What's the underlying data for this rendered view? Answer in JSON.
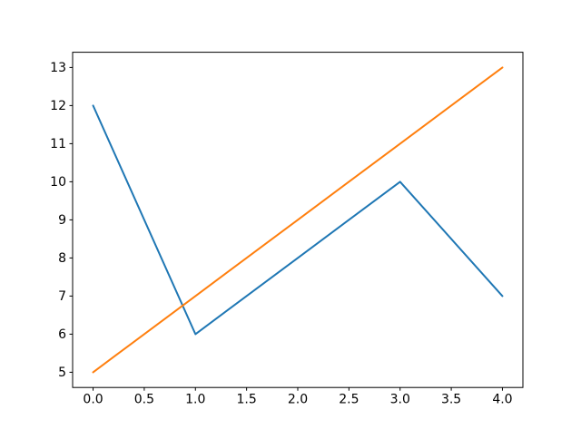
{
  "figure": {
    "background_color": "#ffffff",
    "frame_color": "#000000",
    "tick_color": "#000000",
    "tick_label_color": "#000000"
  },
  "chart_data": {
    "type": "line",
    "title": "",
    "xlabel": "",
    "ylabel": "",
    "x": [
      0,
      1,
      2,
      3,
      4
    ],
    "series": [
      {
        "name": "blue-line",
        "color": "#1f77b4",
        "values": [
          12,
          6,
          8,
          10,
          7
        ]
      },
      {
        "name": "orange-line",
        "color": "#ff7f0e",
        "values": [
          5,
          7,
          9,
          11,
          13
        ]
      }
    ],
    "xlim": [
      -0.2,
      4.2
    ],
    "ylim": [
      4.6,
      13.4
    ],
    "x_ticks": [
      0.0,
      0.5,
      1.0,
      1.5,
      2.0,
      2.5,
      3.0,
      3.5,
      4.0
    ],
    "x_tick_labels": [
      "0.0",
      "0.5",
      "1.0",
      "1.5",
      "2.0",
      "2.5",
      "3.0",
      "3.5",
      "4.0"
    ],
    "y_ticks": [
      5,
      6,
      7,
      8,
      9,
      10,
      11,
      12,
      13
    ],
    "y_tick_labels": [
      "5",
      "6",
      "7",
      "8",
      "9",
      "10",
      "11",
      "12",
      "13"
    ],
    "grid": false,
    "legend": null,
    "line_width": 2
  }
}
